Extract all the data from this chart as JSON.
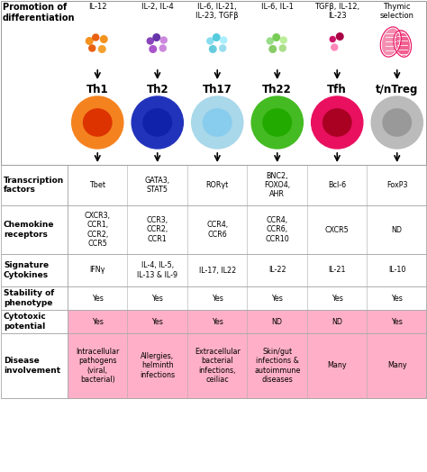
{
  "cell_types": [
    "Th1",
    "Th2",
    "Th17",
    "Th22",
    "Tfh",
    "t/nTreg"
  ],
  "cytokines_above": [
    "IL-12",
    "IL-2, IL-4",
    "IL-6, IL-21,\nIL-23, TGFβ",
    "IL-6, IL-1",
    "TGFβ, IL-12,\nIL-23",
    "Thymic\nselection"
  ],
  "cell_outer_colors": [
    "#F4831F",
    "#2233BB",
    "#A8D8EA",
    "#44BB22",
    "#E91060",
    "#BBBBBB"
  ],
  "cell_inner_colors": [
    "#DD3300",
    "#1122AA",
    "#88CCEE",
    "#22AA00",
    "#AA0022",
    "#999999"
  ],
  "transcription_factors": [
    "Tbet",
    "GATA3,\nSTAT5",
    "RORγt",
    "BNC2,\nFOXO4,\nAHR",
    "Bcl-6",
    "FoxP3"
  ],
  "chemokine_receptors": [
    "CXCR3,\nCCR1,\nCCR2,\nCCR5",
    "CCR3,\nCCR2,\nCCR1",
    "CCR4,\nCCR6",
    "CCR4,\nCCR6,\nCCR10",
    "CXCR5",
    "ND"
  ],
  "signature_cytokines": [
    "IFNγ",
    "IL-4, IL-5,\nIL-13 & IL-9",
    "IL-17, IL22",
    "IL-22",
    "IL-21",
    "IL-10"
  ],
  "stability": [
    "Yes",
    "Yes",
    "Yes",
    "Yes",
    "Yes",
    "Yes"
  ],
  "cytotoxic": [
    "Yes",
    "Yes",
    "Yes",
    "ND",
    "ND",
    "Yes"
  ],
  "disease": [
    "Intracellular\npathogens\n(viral,\nbacterial)",
    "Allergies,\nhelminth\ninfections",
    "Extracellular\nbacterial\ninfections,\nceiliac",
    "Skin/gut\ninfections &\nautoimmune\ndiseases",
    "Many",
    "Many"
  ],
  "row_labels": [
    "Transcription\nfactors",
    "Chemokine\nreceptors",
    "Signature\nCytokines",
    "Stability of\nphenotype",
    "Cytotoxic\npotential",
    "Disease\ninvolvement"
  ],
  "promotion_label": "Promotion of\ndifferentiation"
}
